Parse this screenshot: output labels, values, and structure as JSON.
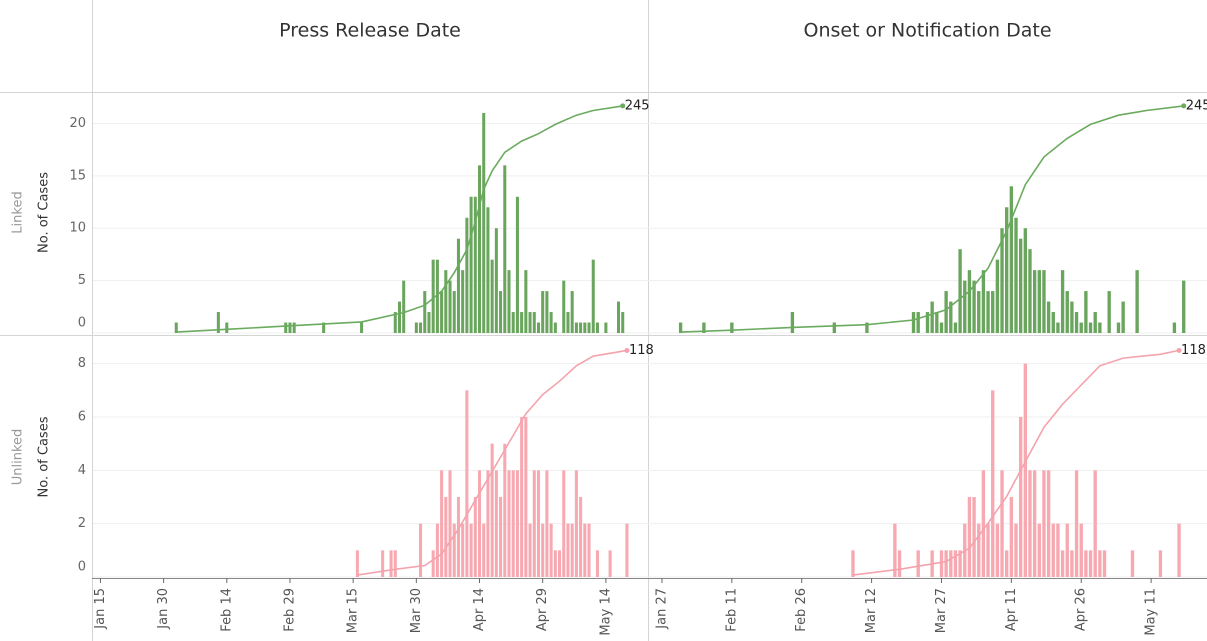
{
  "columns": [
    {
      "title": "Press Release Date",
      "xlim": [
        "Jan 13",
        "May 24"
      ],
      "xticks": [
        "Jan 15",
        "Jan 30",
        "Feb 14",
        "Feb 29",
        "Mar 15",
        "Mar 30",
        "Apr 14",
        "Apr 29",
        "May 14"
      ]
    },
    {
      "title": "Onset or Notification Date",
      "xlim": [
        "Jan 24",
        "May 23"
      ],
      "xticks": [
        "Jan 27",
        "Feb 11",
        "Feb 26",
        "Mar 12",
        "Mar 27",
        "Apr 11",
        "Apr 26",
        "May 11"
      ]
    }
  ],
  "rows": [
    {
      "label": "Linked",
      "y_label": "No. of Cases",
      "ylim": [
        0,
        23
      ],
      "yticks": [
        0,
        5,
        10,
        15,
        20
      ],
      "y2lim": [
        0,
        260
      ],
      "grid": true
    },
    {
      "label": "Unlinked",
      "y_label": "No. of Cases",
      "ylim": [
        0,
        9
      ],
      "yticks": [
        0,
        2,
        4,
        6,
        8
      ],
      "y2lim": [
        0,
        125
      ],
      "grid": true
    }
  ],
  "chart_data": [
    {
      "type": "bar",
      "color": "#6aa55e",
      "x": [
        "Feb 2",
        "Feb 12",
        "Feb 14",
        "Feb 28",
        "Feb 29",
        "Mar 1",
        "Mar 8",
        "Mar 17",
        "Mar 25",
        "Mar 26",
        "Mar 27",
        "Mar 30",
        "Mar 31",
        "Apr 1",
        "Apr 2",
        "Apr 3",
        "Apr 4",
        "Apr 5",
        "Apr 6",
        "Apr 7",
        "Apr 8",
        "Apr 9",
        "Apr 10",
        "Apr 11",
        "Apr 12",
        "Apr 13",
        "Apr 14",
        "Apr 15",
        "Apr 16",
        "Apr 17",
        "Apr 18",
        "Apr 19",
        "Apr 20",
        "Apr 21",
        "Apr 22",
        "Apr 23",
        "Apr 24",
        "Apr 25",
        "Apr 26",
        "Apr 27",
        "Apr 28",
        "Apr 29",
        "Apr 30",
        "May 1",
        "May 2",
        "May 4",
        "May 5",
        "May 6",
        "May 7",
        "May 8",
        "May 9",
        "May 10",
        "May 11",
        "May 12",
        "May 14",
        "May 17",
        "May 18"
      ],
      "values": [
        1,
        2,
        1,
        1,
        1,
        1,
        1,
        1,
        2,
        3,
        5,
        1,
        1,
        4,
        2,
        7,
        7,
        4,
        6,
        5,
        4,
        9,
        6,
        11,
        13,
        13,
        16,
        21,
        12,
        7,
        10,
        4,
        16,
        6,
        2,
        13,
        2,
        6,
        2,
        2,
        1,
        4,
        4,
        2,
        1,
        5,
        2,
        4,
        1,
        1,
        1,
        1,
        7,
        1,
        1,
        3,
        2
      ],
      "line": {
        "color": "#6aab5e",
        "axis": "y2",
        "x": [
          "Feb 2",
          "Feb 14",
          "Mar 1",
          "Mar 17",
          "Mar 27",
          "Apr 1",
          "Apr 5",
          "Apr 8",
          "Apr 11",
          "Apr 13",
          "Apr 15",
          "Apr 17",
          "Apr 20",
          "Apr 24",
          "Apr 28",
          "May 2",
          "May 7",
          "May 11",
          "May 18"
        ],
        "values": [
          1,
          4,
          8,
          12,
          22,
          30,
          45,
          65,
          90,
          120,
          155,
          175,
          195,
          207,
          215,
          225,
          235,
          240,
          245
        ]
      }
    },
    {
      "type": "bar",
      "color": "#6aa55e",
      "x": [
        "Jan 31",
        "Feb 5",
        "Feb 11",
        "Feb 24",
        "Mar 4",
        "Mar 11",
        "Mar 21",
        "Mar 22",
        "Mar 24",
        "Mar 25",
        "Mar 26",
        "Mar 27",
        "Mar 28",
        "Mar 29",
        "Mar 30",
        "Mar 31",
        "Apr 1",
        "Apr 2",
        "Apr 3",
        "Apr 4",
        "Apr 5",
        "Apr 6",
        "Apr 7",
        "Apr 8",
        "Apr 9",
        "Apr 10",
        "Apr 11",
        "Apr 12",
        "Apr 13",
        "Apr 14",
        "Apr 15",
        "Apr 16",
        "Apr 17",
        "Apr 18",
        "Apr 19",
        "Apr 20",
        "Apr 21",
        "Apr 22",
        "Apr 23",
        "Apr 24",
        "Apr 25",
        "Apr 26",
        "Apr 27",
        "Apr 28",
        "Apr 29",
        "Apr 30",
        "May 2",
        "May 4",
        "May 5",
        "May 8",
        "May 16",
        "May 18"
      ],
      "values": [
        1,
        1,
        1,
        2,
        1,
        1,
        2,
        2,
        2,
        3,
        2,
        1,
        4,
        3,
        1,
        8,
        5,
        6,
        5,
        4,
        6,
        4,
        4,
        7,
        10,
        12,
        14,
        11,
        9,
        10,
        8,
        6,
        6,
        6,
        3,
        2,
        1,
        6,
        4,
        3,
        2,
        1,
        4,
        1,
        2,
        1,
        4,
        1,
        3,
        6,
        1,
        5
      ],
      "line": {
        "color": "#6aab5e",
        "axis": "y2",
        "x": [
          "Jan 31",
          "Feb 11",
          "Feb 24",
          "Mar 11",
          "Mar 21",
          "Mar 28",
          "Apr 2",
          "Apr 6",
          "Apr 10",
          "Apr 14",
          "Apr 18",
          "Apr 23",
          "Apr 28",
          "May 4",
          "May 10",
          "May 18"
        ],
        "values": [
          1,
          3,
          6,
          9,
          14,
          25,
          45,
          70,
          110,
          160,
          190,
          210,
          225,
          235,
          240,
          245
        ]
      }
    },
    {
      "type": "bar",
      "color": "#f7a8b0",
      "x": [
        "Mar 16",
        "Mar 22",
        "Mar 24",
        "Mar 25",
        "Mar 31",
        "Apr 3",
        "Apr 4",
        "Apr 5",
        "Apr 6",
        "Apr 7",
        "Apr 8",
        "Apr 9",
        "Apr 10",
        "Apr 11",
        "Apr 12",
        "Apr 13",
        "Apr 14",
        "Apr 15",
        "Apr 16",
        "Apr 17",
        "Apr 18",
        "Apr 19",
        "Apr 20",
        "Apr 21",
        "Apr 22",
        "Apr 23",
        "Apr 24",
        "Apr 25",
        "Apr 26",
        "Apr 27",
        "Apr 28",
        "Apr 29",
        "Apr 30",
        "May 1",
        "May 2",
        "May 3",
        "May 4",
        "May 5",
        "May 6",
        "May 7",
        "May 8",
        "May 9",
        "May 10",
        "May 12",
        "May 15",
        "May 19"
      ],
      "values": [
        1,
        1,
        1,
        1,
        2,
        1,
        2,
        4,
        3,
        4,
        2,
        3,
        2,
        7,
        2,
        3,
        4,
        2,
        4,
        5,
        4,
        3,
        5,
        4,
        4,
        4,
        6,
        6,
        2,
        4,
        4,
        2,
        4,
        2,
        1,
        1,
        4,
        2,
        2,
        4,
        3,
        2,
        2,
        1,
        1,
        2
      ],
      "line": {
        "color": "#f4a3ad",
        "axis": "y2",
        "x": [
          "Mar 16",
          "Mar 25",
          "Apr 1",
          "Apr 5",
          "Apr 9",
          "Apr 13",
          "Apr 17",
          "Apr 21",
          "Apr 25",
          "Apr 29",
          "May 3",
          "May 7",
          "May 11",
          "May 19"
        ],
        "values": [
          1,
          4,
          6,
          12,
          25,
          40,
          55,
          70,
          85,
          95,
          102,
          110,
          115,
          118
        ]
      }
    },
    {
      "type": "bar",
      "color": "#f7a8b0",
      "x": [
        "Mar 8",
        "Mar 17",
        "Mar 18",
        "Mar 22",
        "Mar 25",
        "Mar 27",
        "Mar 28",
        "Mar 29",
        "Mar 30",
        "Mar 31",
        "Apr 1",
        "Apr 2",
        "Apr 3",
        "Apr 4",
        "Apr 5",
        "Apr 6",
        "Apr 7",
        "Apr 8",
        "Apr 9",
        "Apr 10",
        "Apr 11",
        "Apr 12",
        "Apr 13",
        "Apr 14",
        "Apr 15",
        "Apr 16",
        "Apr 17",
        "Apr 18",
        "Apr 19",
        "Apr 20",
        "Apr 21",
        "Apr 22",
        "Apr 23",
        "Apr 24",
        "Apr 25",
        "Apr 26",
        "Apr 27",
        "Apr 28",
        "Apr 29",
        "Apr 30",
        "May 1",
        "May 7",
        "May 13",
        "May 17"
      ],
      "values": [
        1,
        2,
        1,
        1,
        1,
        1,
        1,
        1,
        1,
        1,
        2,
        3,
        3,
        2,
        4,
        2,
        7,
        2,
        4,
        1,
        3,
        2,
        6,
        8,
        4,
        4,
        2,
        4,
        4,
        2,
        2,
        1,
        2,
        1,
        4,
        2,
        1,
        1,
        4,
        1,
        1,
        1,
        1,
        2
      ],
      "line": {
        "color": "#f4a3ad",
        "axis": "y2",
        "x": [
          "Mar 8",
          "Mar 18",
          "Mar 28",
          "Apr 2",
          "Apr 6",
          "Apr 10",
          "Apr 14",
          "Apr 18",
          "Apr 22",
          "Apr 26",
          "Apr 30",
          "May 5",
          "May 13",
          "May 17"
        ],
        "values": [
          1,
          4,
          8,
          15,
          28,
          42,
          60,
          78,
          90,
          100,
          110,
          114,
          116,
          118
        ]
      }
    }
  ]
}
